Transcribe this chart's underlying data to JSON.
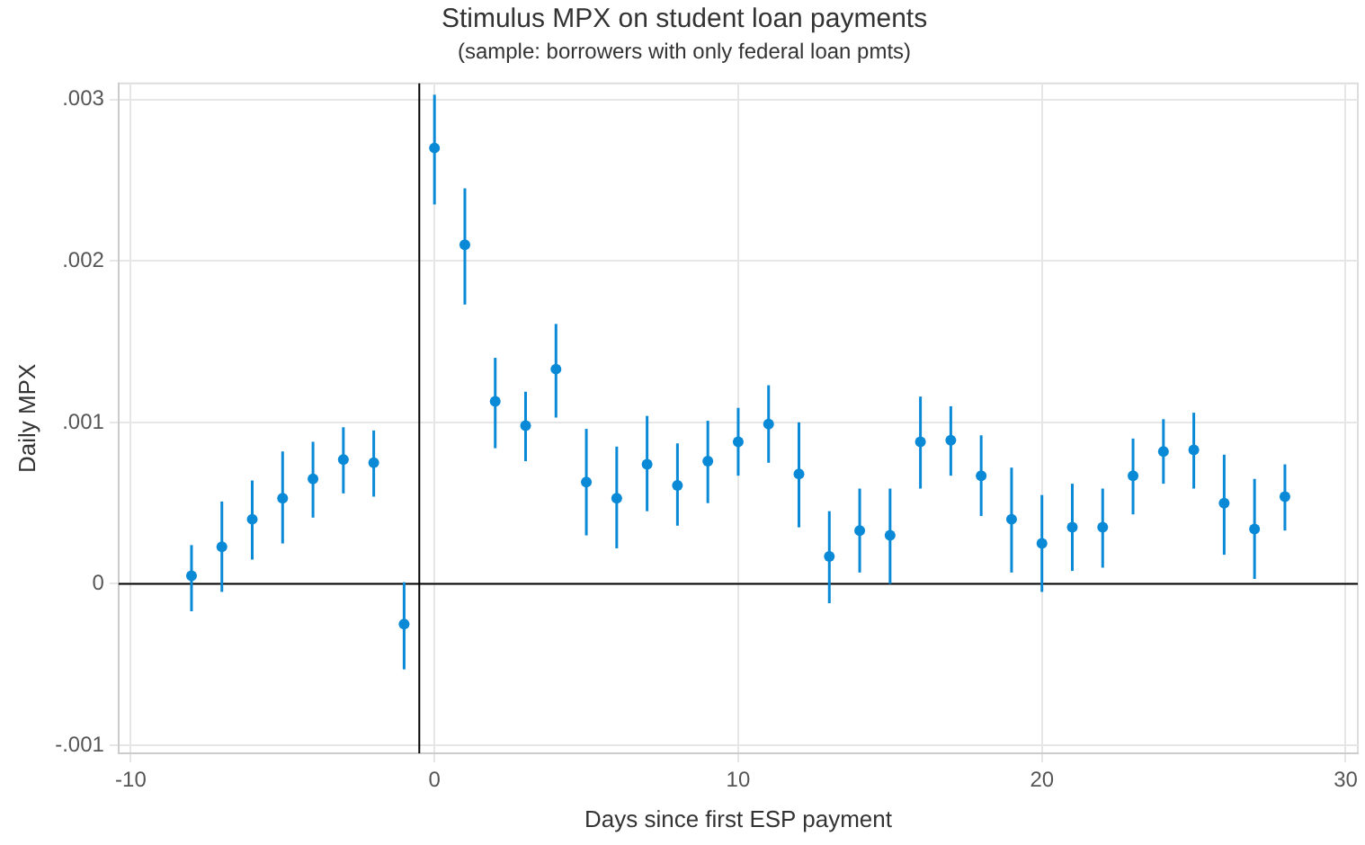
{
  "chart_data": {
    "type": "scatter",
    "title": "Stimulus MPX on student loan payments",
    "subtitle": "(sample: borrowers with only federal loan pmts)",
    "xlabel": "Days since first ESP payment",
    "ylabel": "Daily MPX",
    "x": [
      -8,
      -7,
      -6,
      -5,
      -4,
      -3,
      -2,
      -1,
      0,
      1,
      2,
      3,
      4,
      5,
      6,
      7,
      8,
      9,
      10,
      11,
      12,
      13,
      14,
      15,
      16,
      17,
      18,
      19,
      20,
      21,
      22,
      23,
      24,
      25,
      26,
      27,
      28
    ],
    "series": [
      {
        "color": "#0a8ad6",
        "values": [
          5e-05,
          0.00023,
          0.0004,
          0.00053,
          0.00065,
          0.00077,
          0.00075,
          -0.00025,
          0.0027,
          0.0021,
          0.00113,
          0.00098,
          0.00133,
          0.00063,
          0.00053,
          0.00074,
          0.00061,
          0.00076,
          0.00088,
          0.00099,
          0.00068,
          0.00017,
          0.00033,
          0.0003,
          0.00088,
          0.00089,
          0.00067,
          0.0004,
          0.00025,
          0.00035,
          0.00035,
          0.00067,
          0.00082,
          0.00083,
          0.0005,
          0.00034,
          0.00054
        ],
        "errors": [
          [
            -0.00017,
            0.00024
          ],
          [
            -5e-05,
            0.00051
          ],
          [
            0.00015,
            0.00064
          ],
          [
            0.00025,
            0.00082
          ],
          [
            0.00041,
            0.00088
          ],
          [
            0.00056,
            0.00097
          ],
          [
            0.00054,
            0.00095
          ],
          [
            -0.00053,
            1e-05
          ],
          [
            0.00235,
            0.00303
          ],
          [
            0.00173,
            0.00245
          ],
          [
            0.00084,
            0.0014
          ],
          [
            0.00076,
            0.00119
          ],
          [
            0.00103,
            0.00161
          ],
          [
            0.0003,
            0.00096
          ],
          [
            0.00022,
            0.00085
          ],
          [
            0.00045,
            0.00104
          ],
          [
            0.00036,
            0.00087
          ],
          [
            0.0005,
            0.00101
          ],
          [
            0.00067,
            0.00109
          ],
          [
            0.00075,
            0.00123
          ],
          [
            0.00035,
            0.001
          ],
          [
            -0.00012,
            0.00045
          ],
          [
            7e-05,
            0.00059
          ],
          [
            0,
            0.00059
          ],
          [
            0.00059,
            0.00116
          ],
          [
            0.00067,
            0.0011
          ],
          [
            0.00042,
            0.00092
          ],
          [
            7e-05,
            0.00072
          ],
          [
            -5e-05,
            0.00055
          ],
          [
            8e-05,
            0.00062
          ],
          [
            0.0001,
            0.00059
          ],
          [
            0.00043,
            0.0009
          ],
          [
            0.00062,
            0.00102
          ],
          [
            0.00059,
            0.00106
          ],
          [
            0.00018,
            0.0008
          ],
          [
            3e-05,
            0.00065
          ],
          [
            0.00033,
            0.00074
          ]
        ]
      }
    ],
    "xlim": [
      -10.4,
      30.4
    ],
    "xticks": [
      -10,
      0,
      10,
      20,
      30
    ],
    "ylim": [
      -0.00105,
      0.0031
    ],
    "yticks": [
      {
        "value": -0.001,
        "label": "-.001"
      },
      0,
      {
        "value": 0.001,
        "label": ".001"
      },
      {
        "value": 0.002,
        "label": ".002"
      },
      {
        "value": 0.003,
        "label": ".003"
      }
    ],
    "ref_lines": [
      {
        "axis": "x",
        "value": -0.5,
        "color": "#000000"
      },
      {
        "axis": "y",
        "value": 0,
        "color": "#000000"
      }
    ],
    "grid": true,
    "marker": "circle"
  }
}
